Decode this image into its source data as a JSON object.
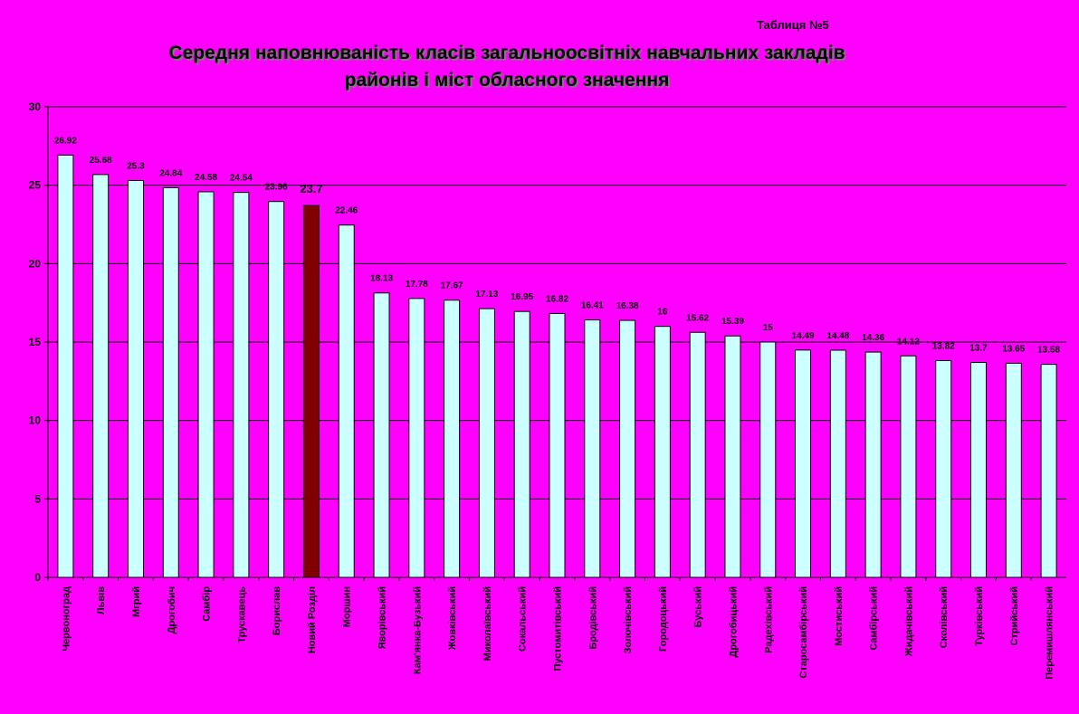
{
  "header": {
    "table_number": "Таблиця №5",
    "title_line1": "Середня наповнюваність  класів загальноосвітніх навчальних закладів",
    "title_line2": "районів і міст обласного значення"
  },
  "colors": {
    "background": "#FF00FF",
    "bar": "#CCFFFF",
    "highlight_bar": "#800000",
    "grid": "#000000"
  },
  "chart_data": {
    "type": "bar",
    "title": "Середня наповнюваність  класів загальноосвітніх навчальних закладів районів і міст обласного значення",
    "xlabel": "",
    "ylabel": "",
    "ylim": [
      0,
      30
    ],
    "yticks": [
      0,
      5,
      10,
      15,
      20,
      25,
      30
    ],
    "grid": true,
    "legend": "none",
    "highlight_category": "Новий Розділ",
    "categories": [
      "Червоноград",
      "Львів",
      "Мгрий",
      "Дрогобич",
      "Самбір",
      "Трускавець",
      "Борислав",
      "Новий Розділ",
      "Моршин",
      "Яворівський",
      "Кам'янка-Бузький",
      "Жовківський",
      "Миколаївський",
      "Сокальський",
      "Пустомитівський",
      "Бродівський",
      "Золочівський",
      "Городоцький",
      "Буський",
      "Дрогобицький",
      "Радехівський",
      "Старосамбірський",
      "Мостиський",
      "Самбірський",
      "Жидачівський",
      "Сколівський",
      "Турківський",
      "Стрийський",
      "Перемишлянський"
    ],
    "values": [
      26.92,
      25.68,
      25.3,
      24.84,
      24.58,
      24.54,
      23.96,
      23.7,
      22.46,
      18.13,
      17.78,
      17.67,
      17.13,
      16.95,
      16.82,
      16.41,
      16.38,
      16,
      15.62,
      15.39,
      15,
      14.49,
      14.48,
      14.36,
      14.12,
      13.82,
      13.7,
      13.65,
      13.58
    ],
    "value_labels": [
      "26.92",
      "25.68",
      "25.3",
      "24.84",
      "24.58",
      "24.54",
      "23.96",
      "23.7",
      "22.46",
      "18.13",
      "17.78",
      "17.67",
      "17.13",
      "16.95",
      "16.82",
      "16.41",
      "16.38",
      "16",
      "15.62",
      "15.39",
      "15",
      "14.49",
      "14.48",
      "14.36",
      "14.12",
      "13.82",
      "13.7",
      "13.65",
      "13.58"
    ]
  }
}
